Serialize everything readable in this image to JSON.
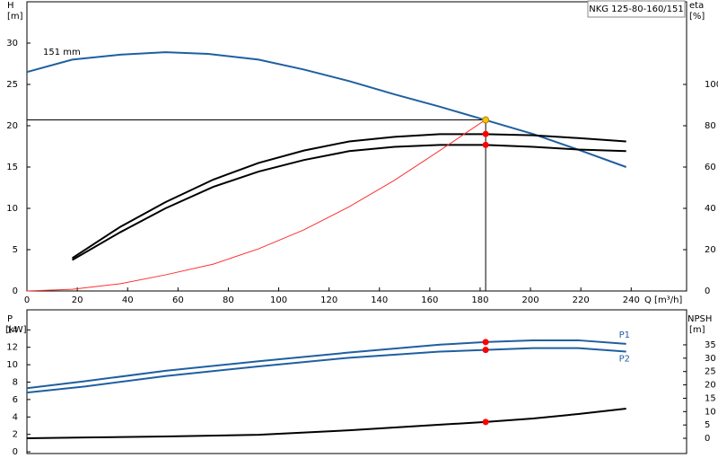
{
  "chart_data": [
    {
      "type": "line",
      "title": "NKG 125-80-160/151",
      "ylabel": "H",
      "yunit": "[m]",
      "y2label": "eta",
      "y2unit": "[%]",
      "xlabel": "Q [m³/h]",
      "annotation": "151 mm",
      "xlim": [
        0,
        262
      ],
      "xticks": [
        0,
        20,
        40,
        60,
        80,
        100,
        120,
        140,
        160,
        180,
        200,
        220,
        240
      ],
      "ylim": [
        0,
        35
      ],
      "yticks": [
        0,
        5,
        10,
        15,
        20,
        25,
        30
      ],
      "y2lim": [
        0,
        140
      ],
      "y2ticks": [
        0,
        20,
        40,
        60,
        80,
        100
      ],
      "series": [
        {
          "color": "#1f5fa0",
          "x": [
            0,
            18,
            37,
            55,
            72,
            92,
            110,
            128,
            146,
            164,
            182,
            201,
            219,
            238
          ],
          "values": [
            26.5,
            28.0,
            28.6,
            28.9,
            28.7,
            28.0,
            26.8,
            25.4,
            23.8,
            22.3,
            20.7,
            19.0,
            17.1,
            15.0
          ]
        },
        {
          "color": "#000000",
          "axis": "y2",
          "x": [
            18,
            37,
            55,
            74,
            92,
            110,
            128,
            146,
            164,
            182,
            201,
            219,
            238
          ],
          "values": [
            15.9,
            31,
            43,
            53.9,
            62,
            68,
            72.4,
            74.6,
            75.9,
            75.9,
            75.4,
            74,
            72.4
          ]
        },
        {
          "color": "#000000",
          "axis": "y2",
          "x": [
            18,
            37,
            55,
            74,
            92,
            110,
            128,
            146,
            164,
            182,
            201,
            219,
            238
          ],
          "values": [
            15,
            28.4,
            40,
            50.4,
            57.8,
            63.4,
            67.7,
            69.8,
            70.7,
            70.7,
            69.8,
            68.5,
            67.7
          ]
        },
        {
          "color": "#ff3030",
          "x": [
            0,
            18,
            37,
            55,
            74,
            92,
            110,
            128,
            146,
            164,
            182
          ],
          "values": [
            0,
            0.2,
            0.87,
            1.95,
            3.25,
            5.1,
            7.4,
            10.2,
            13.4,
            17.0,
            20.7
          ]
        }
      ],
      "operating_point": {
        "x": 182.2,
        "y": 20.7
      },
      "points": [
        {
          "x": 182.2,
          "y": 20.7,
          "color": "#f5c400"
        },
        {
          "x": 182.2,
          "y": 76,
          "axis": "y2",
          "color": "#ff0000"
        },
        {
          "x": 182.2,
          "y": 70.7,
          "axis": "y2",
          "color": "#ff0000"
        }
      ]
    },
    {
      "type": "line",
      "ylabel": "P",
      "yunit": "[kW]",
      "y2label": "NPSH",
      "y2unit": "[m]",
      "xlim": [
        0,
        262
      ],
      "ylim": [
        -0.2,
        16.3
      ],
      "yticks": [
        0,
        2,
        4,
        6,
        8,
        10,
        12,
        14
      ],
      "y2lim": [
        -5.7,
        48.1
      ],
      "y2ticks": [
        0,
        5,
        10,
        15,
        20,
        25,
        30,
        35
      ],
      "series": [
        {
          "name": "P1",
          "color": "#1f5fa0",
          "x": [
            0,
            23,
            55,
            92,
            128,
            164,
            182,
            201,
            219,
            238
          ],
          "values": [
            7.3,
            8.1,
            9.3,
            10.4,
            11.4,
            12.3,
            12.6,
            12.8,
            12.8,
            12.4
          ]
        },
        {
          "name": "P2",
          "color": "#1f5fa0",
          "x": [
            0,
            23,
            55,
            92,
            128,
            164,
            182,
            201,
            219,
            238
          ],
          "values": [
            6.8,
            7.5,
            8.7,
            9.8,
            10.8,
            11.5,
            11.7,
            11.9,
            11.9,
            11.5
          ]
        },
        {
          "color": "#000000",
          "axis": "y2",
          "x": [
            0,
            23,
            55,
            92,
            128,
            164,
            182,
            201,
            219,
            238
          ],
          "values": [
            0,
            0.3,
            0.7,
            1.3,
            3.0,
            5.1,
            6.1,
            7.4,
            9.1,
            11.1
          ]
        }
      ],
      "points": [
        {
          "x": 182.2,
          "y": 12.6,
          "color": "#ff0000"
        },
        {
          "x": 182.2,
          "y": 11.7,
          "color": "#ff0000"
        },
        {
          "x": 182.2,
          "y": 6.1,
          "axis": "y2",
          "color": "#ff0000"
        }
      ]
    }
  ]
}
